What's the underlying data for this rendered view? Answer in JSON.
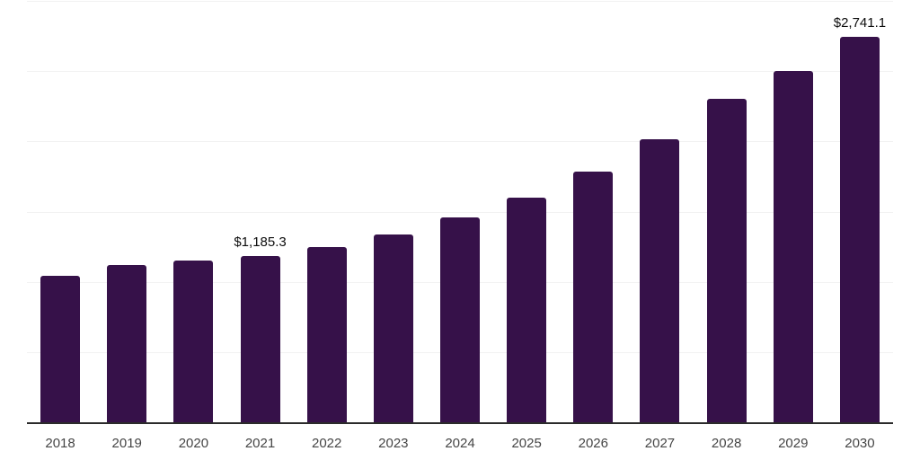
{
  "chart_data": {
    "type": "bar",
    "title": "",
    "xlabel": "",
    "ylabel": "",
    "categories": [
      "2018",
      "2019",
      "2020",
      "2021",
      "2022",
      "2023",
      "2024",
      "2025",
      "2026",
      "2027",
      "2028",
      "2029",
      "2030"
    ],
    "values": [
      1045,
      1117,
      1149,
      1185.3,
      1246,
      1337,
      1456,
      1601,
      1782,
      2018,
      2305,
      2504,
      2741.1
    ],
    "annotations": [
      {
        "category": "2021",
        "text": "$1,185.3"
      },
      {
        "category": "2030",
        "text": "$2,741.1"
      }
    ],
    "ylim": [
      0,
      3000
    ],
    "gridline_values": [
      500,
      1000,
      1500,
      2000,
      2500,
      3000
    ],
    "grid": true,
    "legend": "none",
    "colors": {
      "bar": "#361149",
      "gridline": "#f2f2f2",
      "axis_line": "#2b2b2b",
      "x_label": "#454545",
      "annotation": "#0d0d0d",
      "background": "#ffffff"
    }
  }
}
